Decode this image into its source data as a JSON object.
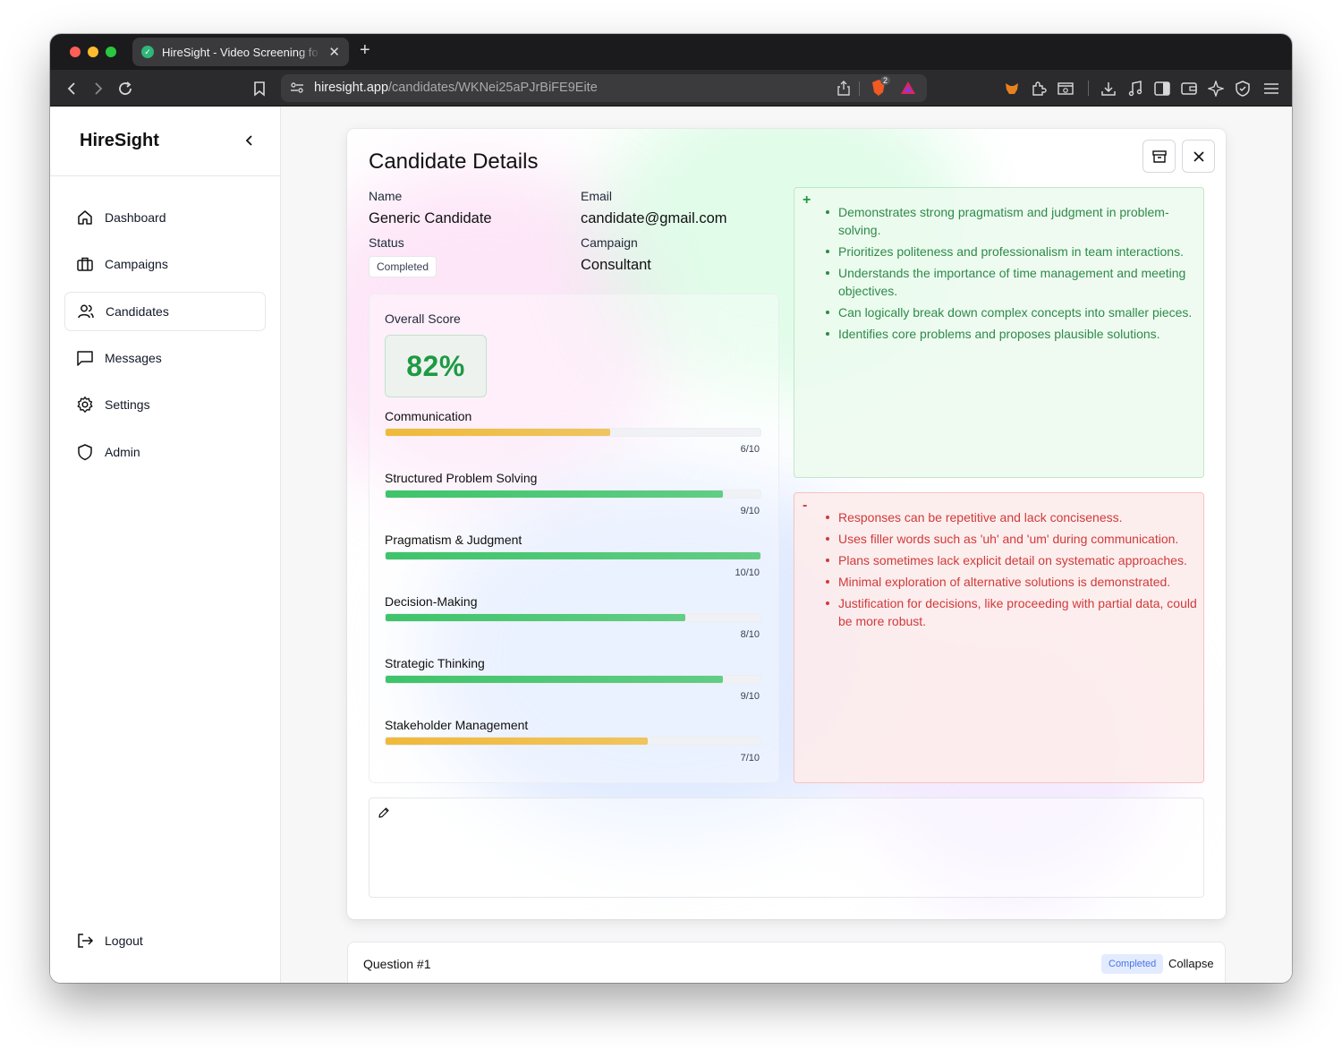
{
  "browser": {
    "tab_title": "HireSight - Video Screening fo",
    "url_host": "hiresight.app",
    "url_path": "/candidates/WKNei25aPJrBiFE9Eite",
    "brave_badge": "2"
  },
  "sidebar": {
    "brand": "HireSight",
    "items": [
      {
        "label": "Dashboard",
        "icon": "home-icon"
      },
      {
        "label": "Campaigns",
        "icon": "briefcase-icon"
      },
      {
        "label": "Candidates",
        "icon": "users-icon",
        "active": true
      },
      {
        "label": "Messages",
        "icon": "message-icon"
      },
      {
        "label": "Settings",
        "icon": "gear-icon"
      },
      {
        "label": "Admin",
        "icon": "shield-icon"
      }
    ],
    "logout": "Logout"
  },
  "details": {
    "title": "Candidate Details",
    "name_label": "Name",
    "name": "Generic Candidate",
    "email_label": "Email",
    "email": "candidate@gmail.com",
    "status_label": "Status",
    "status": "Completed",
    "campaign_label": "Campaign",
    "campaign": "Consultant"
  },
  "scores": {
    "overall_label": "Overall Score",
    "overall": "82%",
    "metrics": [
      {
        "name": "Communication",
        "score": 6,
        "max": 10,
        "label": "6/10"
      },
      {
        "name": "Structured Problem Solving",
        "score": 9,
        "max": 10,
        "label": "9/10"
      },
      {
        "name": "Pragmatism & Judgment",
        "score": 10,
        "max": 10,
        "label": "10/10"
      },
      {
        "name": "Decision-Making",
        "score": 8,
        "max": 10,
        "label": "8/10"
      },
      {
        "name": "Strategic Thinking",
        "score": 9,
        "max": 10,
        "label": "9/10"
      },
      {
        "name": "Stakeholder Management",
        "score": 7,
        "max": 10,
        "label": "7/10"
      }
    ]
  },
  "strengths": {
    "sign": "+",
    "items": [
      "Demonstrates strong pragmatism and judgment in problem-solving.",
      "Prioritizes politeness and professionalism in team interactions.",
      "Understands the importance of time management and meeting objectives.",
      "Can logically break down complex concepts into smaller pieces.",
      "Identifies core problems and proposes plausible solutions."
    ]
  },
  "weaknesses": {
    "sign": "-",
    "items": [
      "Responses can be repetitive and lack conciseness.",
      "Uses filler words such as 'uh' and 'um' during communication.",
      "Plans sometimes lack explicit detail on systematic approaches.",
      "Minimal exploration of alternative solutions is demonstrated.",
      "Justification for decisions, like proceeding with partial data, could be more robust."
    ]
  },
  "question": {
    "title": "Question #1",
    "status": "Completed",
    "collapse": "Collapse"
  },
  "colors": {
    "high": "#3ec46a",
    "mid": "#f0b93a",
    "accent_green": "#1d9a43",
    "accent_red": "#d03a3a"
  }
}
